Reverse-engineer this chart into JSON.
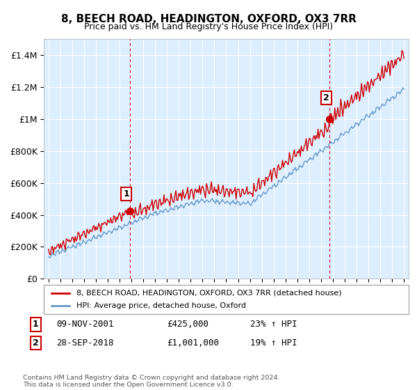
{
  "title": "8, BEECH ROAD, HEADINGTON, OXFORD, OX3 7RR",
  "subtitle": "Price paid vs. HM Land Registry's House Price Index (HPI)",
  "legend_label_red": "8, BEECH ROAD, HEADINGTON, OXFORD, OX3 7RR (detached house)",
  "legend_label_blue": "HPI: Average price, detached house, Oxford",
  "annotation1_num": "1",
  "annotation1_date": "09-NOV-2001",
  "annotation1_price": "£425,000",
  "annotation1_hpi": "23% ↑ HPI",
  "annotation2_num": "2",
  "annotation2_date": "28-SEP-2018",
  "annotation2_price": "£1,001,000",
  "annotation2_hpi": "19% ↑ HPI",
  "footer": "Contains HM Land Registry data © Crown copyright and database right 2024.\nThis data is licensed under the Open Government Licence v3.0.",
  "red_color": "#cc0000",
  "blue_color": "#6699cc",
  "vline_color": "#cc0000",
  "bg_color": "#ddeeff",
  "ylim": [
    0,
    1500000
  ],
  "yticks": [
    0,
    200000,
    400000,
    600000,
    800000,
    1000000,
    1200000,
    1400000
  ],
  "sale1_year": 2001.85,
  "sale1_price": 425000,
  "sale2_year": 2018.74,
  "sale2_price": 1001000,
  "xmin": 1995,
  "xmax": 2025
}
